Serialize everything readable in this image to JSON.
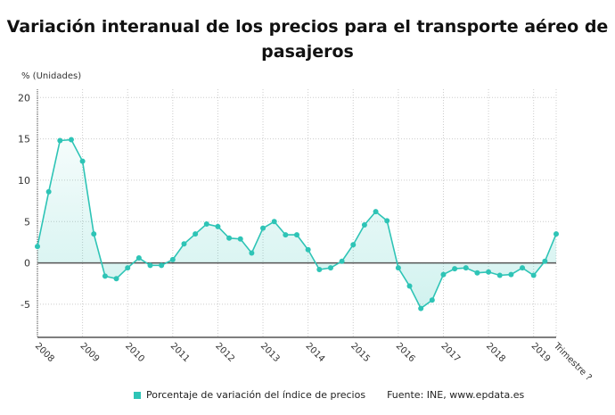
{
  "chart_data": {
    "type": "area",
    "title": "Variación interanual de los precios para el transporte aéreo de pasajeros",
    "ylabel": "% (Unidades)",
    "ylim": [
      -9,
      21
    ],
    "yticks": [
      -5,
      0,
      5,
      10,
      15,
      20
    ],
    "xtick_labels": [
      "2008",
      "2009",
      "2010",
      "2011",
      "2012",
      "2013",
      "2014",
      "2015",
      "2016",
      "2017",
      "2018",
      "2019",
      "Trimestre ?"
    ],
    "grid": true,
    "legend_position": "bottom",
    "series": [
      {
        "name": "Porcentaje de variación del índice de precios",
        "color": "#2ec4b6",
        "values": [
          2.0,
          8.6,
          14.8,
          14.9,
          12.3,
          3.5,
          -1.6,
          -1.9,
          -0.6,
          0.6,
          -0.3,
          -0.3,
          0.4,
          2.3,
          3.5,
          4.7,
          4.4,
          3.0,
          2.9,
          1.2,
          4.2,
          5.0,
          3.4,
          3.4,
          1.6,
          -0.8,
          -0.6,
          0.2,
          2.2,
          4.6,
          6.2,
          5.1,
          -0.6,
          -2.8,
          -5.5,
          -4.5,
          -1.4,
          -0.7,
          -0.6,
          -1.2,
          -1.1,
          -1.5,
          -1.4,
          -0.6,
          -1.5,
          0.2,
          3.5
        ]
      }
    ],
    "source": "Fuente: INE, www.epdata.es"
  }
}
